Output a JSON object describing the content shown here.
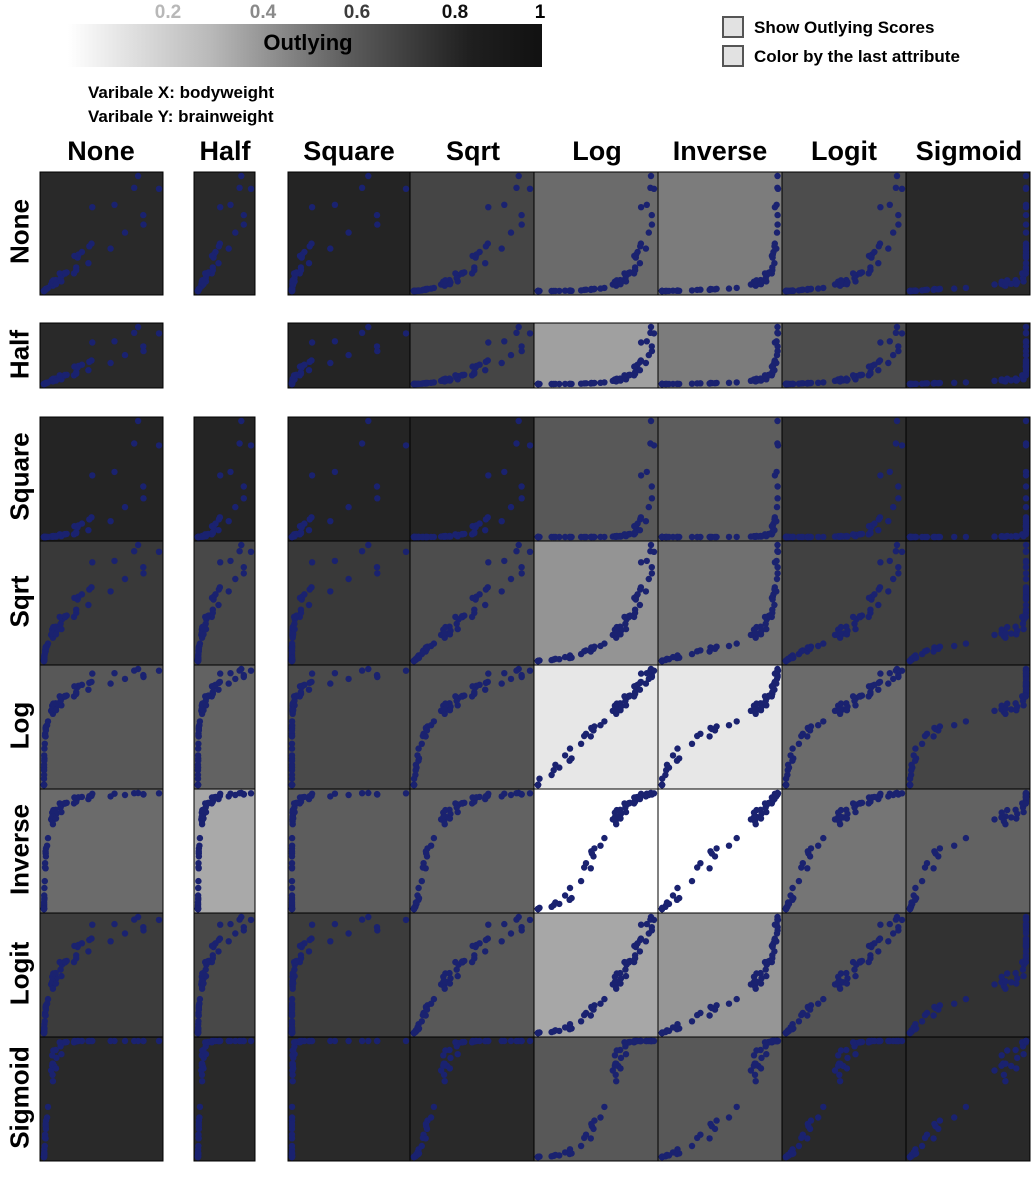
{
  "legend": {
    "ticks": [
      "0.2",
      "0.4",
      "0.6",
      "0.8",
      "1"
    ],
    "label": "Outlying"
  },
  "options": {
    "show_outlying_scores": {
      "label": "Show Outlying Scores",
      "checked": false
    },
    "color_by_last_attribute": {
      "label": "Color by the last attribute",
      "checked": false
    }
  },
  "variables": {
    "x_label": "Varibale X: bodyweight",
    "y_label": "Varibale Y: brainweight"
  },
  "colors": {
    "point": "#1a2270",
    "border": "#000000"
  },
  "chart_data": {
    "type": "scatter",
    "columns": [
      "None",
      "Half",
      "Square",
      "Sqrt",
      "Log",
      "Inverse",
      "Logit",
      "Sigmoid"
    ],
    "rows": [
      "None",
      "Half",
      "Square",
      "Sqrt",
      "Log",
      "Inverse",
      "Logit",
      "Sigmoid"
    ],
    "outlying_scores": [
      [
        0.9,
        0.9,
        0.92,
        0.78,
        0.62,
        0.55,
        0.75,
        0.9
      ],
      [
        0.9,
        null,
        0.92,
        0.78,
        0.4,
        0.55,
        0.75,
        0.92
      ],
      [
        0.92,
        0.92,
        0.92,
        0.92,
        0.7,
        0.68,
        0.88,
        0.92
      ],
      [
        0.83,
        0.77,
        0.83,
        0.75,
        0.45,
        0.6,
        0.8,
        0.85
      ],
      [
        0.7,
        0.66,
        0.76,
        0.72,
        0.1,
        0.1,
        0.62,
        0.78
      ],
      [
        0.62,
        0.36,
        0.68,
        0.66,
        0.0,
        0.0,
        0.58,
        0.66
      ],
      [
        0.82,
        0.77,
        0.82,
        0.7,
        0.37,
        0.44,
        0.72,
        0.86
      ],
      [
        0.9,
        0.9,
        0.9,
        0.9,
        0.7,
        0.7,
        0.9,
        0.9
      ]
    ]
  }
}
